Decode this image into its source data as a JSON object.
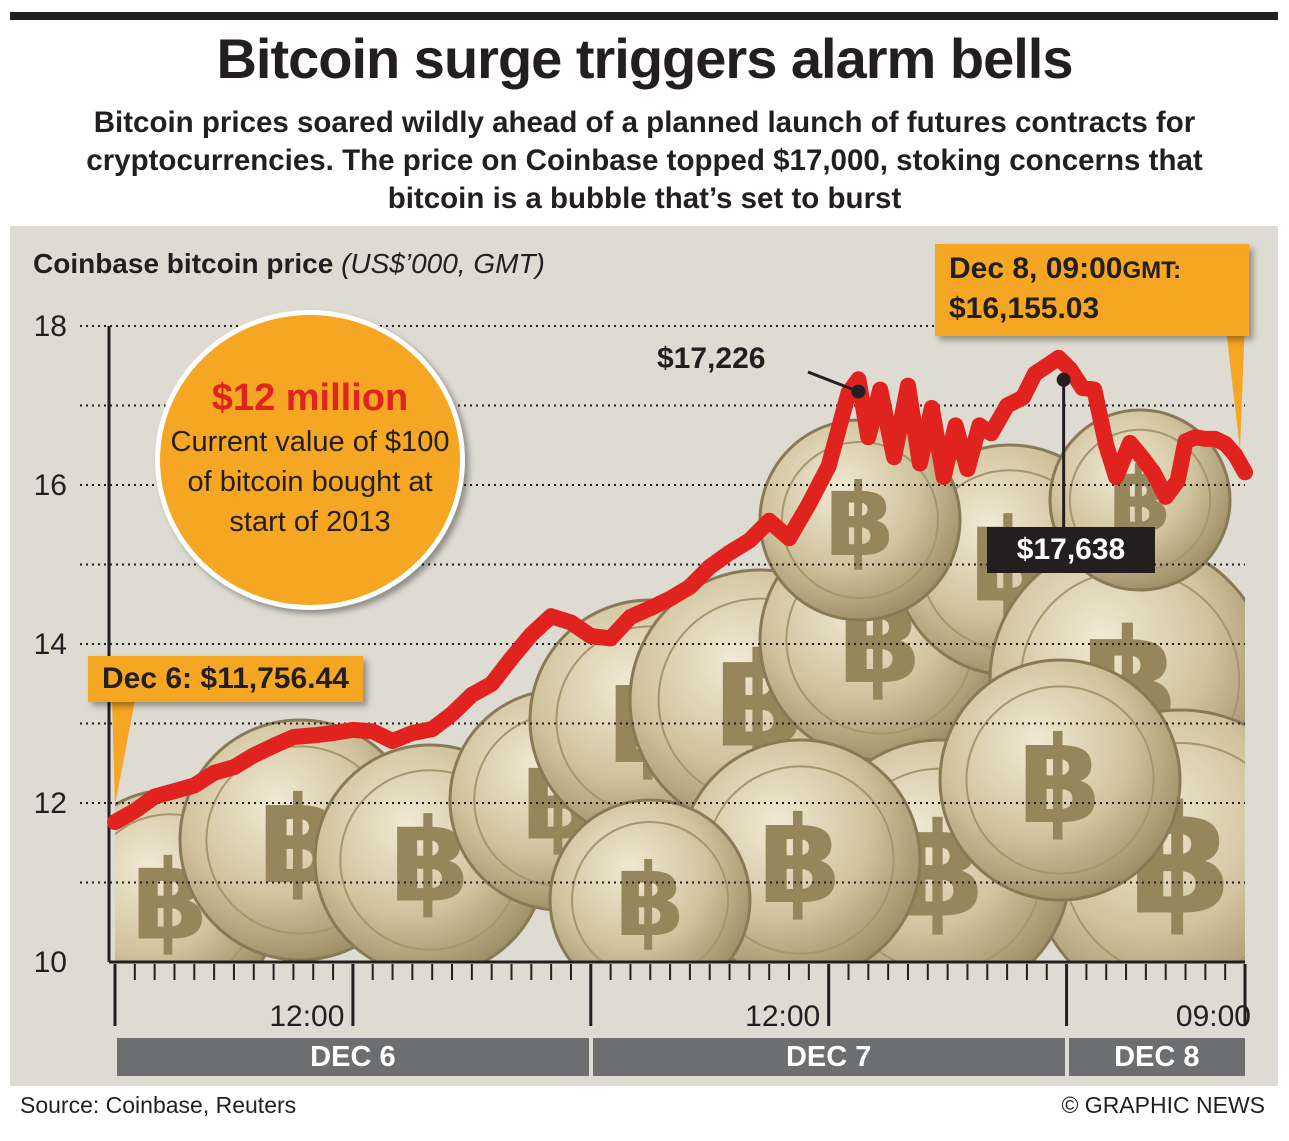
{
  "title": "Bitcoin surge triggers alarm bells",
  "subtitle": "Bitcoin prices soared wildly ahead of a planned launch of futures contracts for cryptocurrencies. The price on Coinbase topped $17,000, stoking concerns that bitcoin is a bubble that’s set to burst",
  "chart_label": {
    "main": "Coinbase bitcoin price",
    "unit": "(US$’000, GMT)"
  },
  "highlight": {
    "value": "$12 million",
    "text": "Current value of $100 of bitcoin bought at start of 2013"
  },
  "callouts": {
    "start": "Dec 6: $11,756.44",
    "end_line1": "Dec 8, 09:00",
    "end_line1_suffix": "GMT:",
    "end_line2": "$16,155.03",
    "peak1": "$17,226",
    "peak2": "$17,638"
  },
  "source": "Source: Coinbase, Reuters",
  "credit": "© GRAPHIC NEWS",
  "colors": {
    "line": "#e0231f",
    "accent": "#f5a623",
    "panel": "#dedbd2",
    "daybar": "#6d6e70"
  },
  "chart_data": {
    "type": "line",
    "title": "Coinbase bitcoin price",
    "ylabel": "US$’000, GMT",
    "ylim": [
      10,
      18
    ],
    "yticks": [
      10,
      12,
      14,
      16,
      18
    ],
    "xlim": [
      0,
      57
    ],
    "x_unit": "hours from Dec 6 00:00 GMT",
    "xticks": [
      {
        "x": 12,
        "label": "12:00"
      },
      {
        "x": 36,
        "label": "12:00"
      },
      {
        "x": 57,
        "label": "09:00"
      }
    ],
    "days": [
      {
        "label": "DEC 6",
        "start": 0,
        "end": 24
      },
      {
        "label": "DEC 7",
        "start": 24,
        "end": 48
      },
      {
        "label": "DEC 8",
        "start": 48,
        "end": 57
      }
    ],
    "series": [
      {
        "values": [
          [
            0,
            11.76
          ],
          [
            1,
            11.9
          ],
          [
            2,
            12.08
          ],
          [
            3,
            12.15
          ],
          [
            4,
            12.22
          ],
          [
            5,
            12.38
          ],
          [
            6,
            12.45
          ],
          [
            7,
            12.6
          ],
          [
            8,
            12.72
          ],
          [
            9,
            12.83
          ],
          [
            10,
            12.85
          ],
          [
            11,
            12.88
          ],
          [
            12,
            12.92
          ],
          [
            13,
            12.9
          ],
          [
            14,
            12.78
          ],
          [
            15,
            12.88
          ],
          [
            16,
            12.93
          ],
          [
            17,
            13.12
          ],
          [
            18,
            13.36
          ],
          [
            19,
            13.5
          ],
          [
            20,
            13.82
          ],
          [
            21,
            14.12
          ],
          [
            22,
            14.35
          ],
          [
            23,
            14.27
          ],
          [
            24,
            14.1
          ],
          [
            25,
            14.07
          ],
          [
            26,
            14.34
          ],
          [
            27,
            14.45
          ],
          [
            28,
            14.57
          ],
          [
            29,
            14.72
          ],
          [
            30,
            14.97
          ],
          [
            31,
            15.15
          ],
          [
            32,
            15.3
          ],
          [
            33,
            15.55
          ],
          [
            34,
            15.33
          ],
          [
            35,
            15.76
          ],
          [
            36,
            16.24
          ],
          [
            37,
            17.16
          ],
          [
            37.5,
            17.33
          ],
          [
            38,
            16.6
          ],
          [
            38.6,
            17.2
          ],
          [
            39.3,
            16.35
          ],
          [
            40,
            17.25
          ],
          [
            40.6,
            16.27
          ],
          [
            41.2,
            16.97
          ],
          [
            41.8,
            16.1
          ],
          [
            42.4,
            16.75
          ],
          [
            43,
            16.2
          ],
          [
            43.6,
            16.75
          ],
          [
            44.2,
            16.65
          ],
          [
            45,
            17.0
          ],
          [
            45.8,
            17.1
          ],
          [
            46.4,
            17.4
          ],
          [
            47,
            17.5
          ],
          [
            47.6,
            17.6
          ],
          [
            48.2,
            17.45
          ],
          [
            48.8,
            17.22
          ],
          [
            49.4,
            17.2
          ],
          [
            50,
            16.5
          ],
          [
            50.5,
            16.1
          ],
          [
            51.2,
            16.53
          ],
          [
            51.8,
            16.35
          ],
          [
            52.4,
            16.15
          ],
          [
            53,
            15.85
          ],
          [
            53.6,
            16.05
          ],
          [
            54,
            16.55
          ],
          [
            54.5,
            16.6
          ],
          [
            55,
            16.58
          ],
          [
            55.5,
            16.58
          ],
          [
            56,
            16.52
          ],
          [
            56.5,
            16.38
          ],
          [
            57,
            16.16
          ]
        ]
      }
    ],
    "annotations": [
      {
        "x": 0,
        "y": 11.76,
        "label": "Dec 6: $11,756.44"
      },
      {
        "x": 37.5,
        "y": 17.226,
        "label": "$17,226"
      },
      {
        "x": 47.6,
        "y": 17.638,
        "label": "$17,638"
      },
      {
        "x": 57,
        "y": 16.155,
        "label": "Dec 8, 09:00GMT: $16,155.03"
      }
    ]
  }
}
